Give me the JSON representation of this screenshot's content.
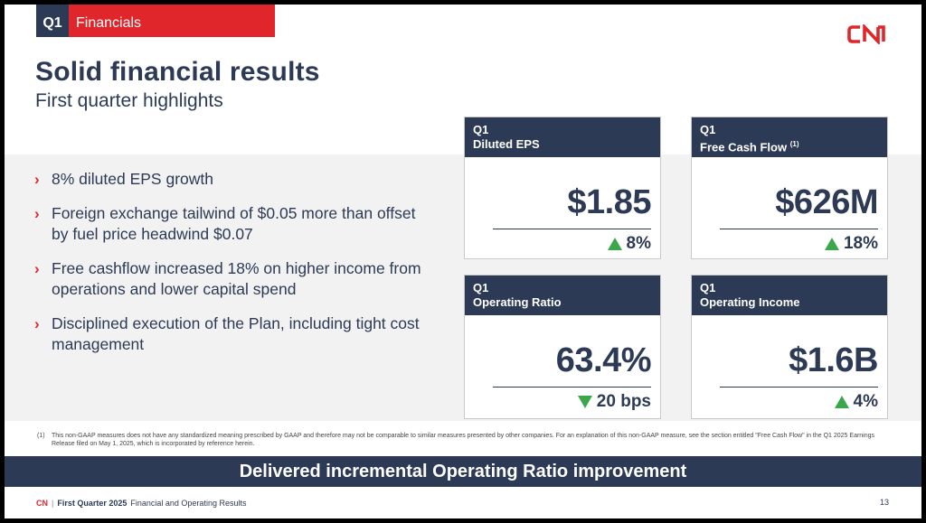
{
  "header": {
    "quarter": "Q1",
    "section": "Financials"
  },
  "logo": {
    "text": "CN",
    "color": "#e0262a"
  },
  "title": "Solid financial results",
  "subtitle": "First quarter highlights",
  "bullets": [
    "8% diluted EPS growth",
    "Foreign exchange tailwind of $0.05 more than offset by fuel price headwind $0.07",
    "Free cashflow increased 18% on higher income from operations and lower capital spend",
    "Disciplined execution of the Plan, including tight cost management"
  ],
  "cards": [
    {
      "line1": "Q1",
      "line2": "Diluted EPS",
      "note": "",
      "value": "$1.85",
      "change": "8%",
      "direction": "up"
    },
    {
      "line1": "Q1",
      "line2": "Free Cash Flow",
      "note": "(1)",
      "value": "$626M",
      "change": "18%",
      "direction": "up"
    },
    {
      "line1": "Q1",
      "line2": "Operating Ratio",
      "note": "",
      "value": "63.4%",
      "change": "20 bps",
      "direction": "down"
    },
    {
      "line1": "Q1",
      "line2": "Operating Income",
      "note": "",
      "value": "$1.6B",
      "change": "4%",
      "direction": "up"
    }
  ],
  "footnote": {
    "number": "(1)",
    "text": "This non-GAAP measures does not have any standardized meaning prescribed by GAAP and therefore may not be comparable to similar measures presented by other companies. For an explanation of this non-GAAP measure, see the section entitled \"Free Cash Flow\" in the Q1 2025 Earnings Release filed on May 1, 2025, which is incorporated by reference herein."
  },
  "banner": "Delivered incremental Operating Ratio improvement",
  "footer": {
    "brand": "CN",
    "separator": "|",
    "bold": "First Quarter 2025",
    "rest": "Financial and Operating Results",
    "page": "13"
  },
  "colors": {
    "navy": "#2d3a55",
    "red": "#e0262a",
    "green": "#3aa84a"
  }
}
